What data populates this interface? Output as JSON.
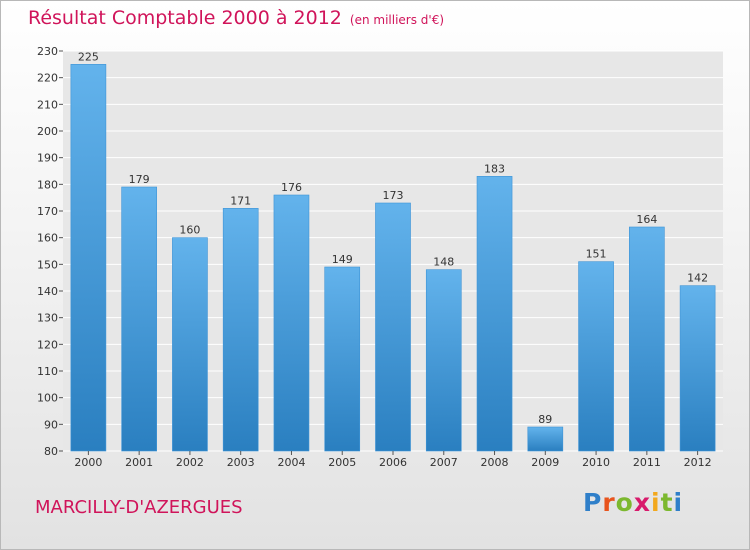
{
  "header": {
    "title": "Résultat Comptable 2000 à 2012",
    "subtitle": "(en milliers d'€)"
  },
  "footer": {
    "town": "MARCILLY-D'AZERGUES",
    "logo": {
      "text": "Proxiti",
      "letter_colors": [
        "#2f7fc9",
        "#e8541d",
        "#7cb82f",
        "#d81a6b",
        "#f2a81d",
        "#7cb82f",
        "#2f7fc9"
      ]
    }
  },
  "colors": {
    "title": "#d0145a",
    "bar_light": "#63b3ec",
    "bar_dark": "#2a7fc0",
    "grid": "#ffffff"
  },
  "chart_data": {
    "type": "bar",
    "title": "Résultat Comptable 2000 à 2012",
    "subtitle": "(en milliers d'€)",
    "categories": [
      "2000",
      "2001",
      "2002",
      "2003",
      "2004",
      "2005",
      "2006",
      "2007",
      "2008",
      "2009",
      "2010",
      "2011",
      "2012"
    ],
    "values": [
      225,
      179,
      160,
      171,
      176,
      149,
      173,
      148,
      183,
      89,
      151,
      164,
      142
    ],
    "ylim": [
      80,
      230
    ],
    "ytick_step": 10,
    "grid": true
  }
}
